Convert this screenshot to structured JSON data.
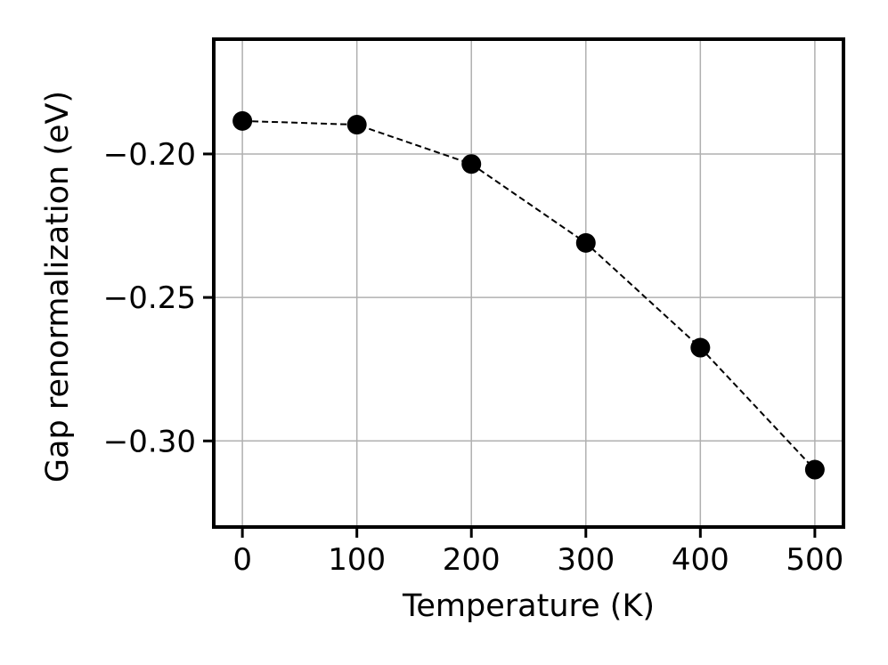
{
  "chart_data": {
    "type": "line",
    "title": "",
    "xlabel": "Temperature (K)",
    "ylabel": "Gap renormalization (eV)",
    "x": [
      0,
      100,
      200,
      300,
      400,
      500
    ],
    "series": [
      {
        "values": [
          -0.1885,
          -0.1898,
          -0.2035,
          -0.231,
          -0.2675,
          -0.31
        ],
        "line_style": "dashed",
        "marker": "circle",
        "color": "#000000"
      }
    ],
    "xlim": [
      -25,
      525
    ],
    "ylim": [
      -0.33,
      -0.16
    ],
    "xticks": [
      0,
      100,
      200,
      300,
      400,
      500
    ],
    "xtick_labels": [
      "0",
      "100",
      "200",
      "300",
      "400",
      "500"
    ],
    "yticks": [
      -0.2,
      -0.25,
      -0.3
    ],
    "ytick_labels": [
      "−0.20",
      "−0.25",
      "−0.30"
    ],
    "grid": true,
    "legend": "none",
    "colors": {
      "grid": "#b0b0b0",
      "axes": "#000000",
      "line": "#000000",
      "marker": "#000000"
    }
  }
}
